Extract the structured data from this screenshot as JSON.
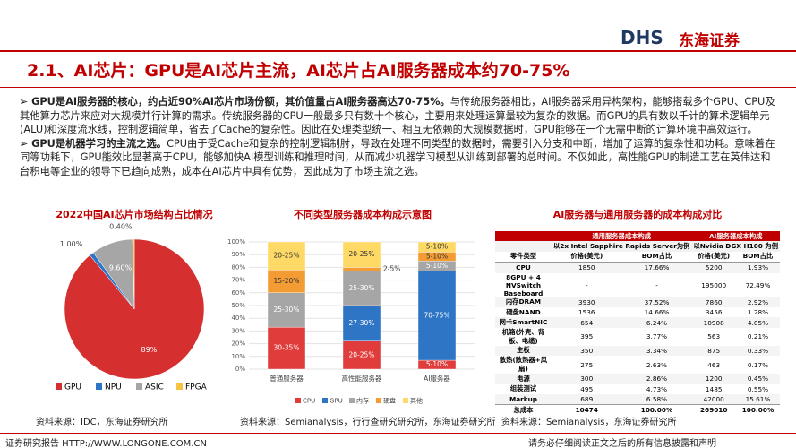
{
  "header": {
    "logo": "DHS",
    "logo_cn": "东海证券",
    "title": "2.1、AI芯片：GPU是AI芯片主流，AI芯片占AI服务器成本约70-75%"
  },
  "bullets": [
    {
      "bold": "GPU是AI服务器的核心，约占近90%AI芯片市场份额，其价值量占AI服务器高达70-75%。",
      "text": "与传统服务器相比，AI服务器采用异构架构，能够搭载多个GPU、CPU及其他算力芯片来应对大规模并行计算的需求。传统服务器的CPU一般最多只有数十个核心，主要用来处理运算量较为复杂的数据。而GPU的具有数以千计的算术逻辑单元(ALU)和深度流水线，控制逻辑简单，省去了Cache的复杂性。因此在处理类型统一、相互无依赖的大规模数据时，GPU能够在一个无需中断的计算环境中高效运行。"
    },
    {
      "bold": "GPU是机器学习的主流之选。",
      "text": "CPU由于受Cache和复杂的控制逻辑制肘，导致在处理不同类型的数据时，需要引入分支和中断，增加了运算的复杂性和功耗。意味着在同等功耗下，GPU能效比显著高于CPU，能够加快AI模型训练和推理时间，从而减少机器学习模型从训练到部署的总时间。不仅如此，高性能GPU的制造工艺在英伟达和台积电等企业的领导下已趋向成熟，成本在AI芯片中具有优势，因此成为了市场主流之选。"
    }
  ],
  "chart_data": [
    {
      "type": "pie",
      "title": "2022中国AI芯片市场结构占比情况",
      "categories": [
        "GPU",
        "NPU",
        "ASIC",
        "FPGA"
      ],
      "values": [
        89,
        1.0,
        9.6,
        0.4
      ],
      "value_labels": [
        "89%",
        "1.00%",
        "9.60%",
        "0.40%"
      ],
      "colors": [
        "#d62f2f",
        "#2e75c6",
        "#a6a6a6",
        "#f5c242"
      ]
    },
    {
      "type": "bar",
      "stacked": true,
      "title": "不同类型服务器成本构成示意图",
      "categories": [
        "普通服务器",
        "高性能服务器",
        "AI服务器"
      ],
      "series": [
        {
          "name": "CPU",
          "color": "#e03c3c",
          "values": [
            33,
            22,
            7
          ],
          "value_labels": [
            "30-35%",
            "20-25%",
            "5-10%"
          ]
        },
        {
          "name": "GPU",
          "color": "#2e75c6",
          "values": [
            null,
            28,
            70
          ],
          "value_labels": [
            null,
            "27-30%",
            "70-75%"
          ]
        },
        {
          "name": "内存",
          "color": "#a6a6a6",
          "values": [
            27,
            27,
            8
          ],
          "value_labels": [
            "25-30%",
            "25-30%",
            "5-10%"
          ]
        },
        {
          "name": "硬盘",
          "color": "#f39c34",
          "values": [
            18,
            3,
            7
          ],
          "value_labels": [
            "15-20%",
            "2-5%",
            "5-10%"
          ]
        },
        {
          "name": "其他",
          "color": "#ffd966",
          "values": [
            22,
            20,
            8
          ],
          "value_labels": [
            "20-25%",
            "20-25%",
            "5-10%"
          ]
        }
      ],
      "ylim": [
        0,
        100
      ],
      "yticks": [
        {
          "value": 0,
          "label": "0%"
        },
        {
          "value": 10,
          "label": "10%"
        },
        {
          "value": 20,
          "label": "20%"
        },
        {
          "value": 30,
          "label": "30%"
        },
        {
          "value": 40,
          "label": "40%"
        },
        {
          "value": 50,
          "label": "50%"
        },
        {
          "value": 60,
          "label": "60%"
        },
        {
          "value": 70,
          "label": "70%"
        },
        {
          "value": 80,
          "label": "80%"
        },
        {
          "value": 90,
          "label": "90%"
        },
        {
          "value": 100,
          "label": "100%"
        }
      ],
      "grid": true
    }
  ],
  "table": {
    "title": "AI服务器与通用服务器的成本构成对比",
    "groups": [
      "通用服务器成本构成",
      "AI服务器成本构成"
    ],
    "examples": [
      "以2x Intel Sapphire Rapids Server为例",
      "以Nvidia DGX H100 为例"
    ],
    "columns": [
      "零件类型",
      "价格(美元)",
      "BOM占比",
      "价格(美元)",
      "BOM占比"
    ],
    "rows": [
      [
        "CPU",
        "1850",
        "17.66%",
        "5200",
        "1.93%"
      ],
      [
        "8GPU + 4 NVSwitch Baseboard",
        "-",
        "-",
        "195000",
        "72.49%"
      ],
      [
        "内存DRAM",
        "3930",
        "37.52%",
        "7860",
        "2.92%"
      ],
      [
        "硬盘NAND",
        "1536",
        "14.66%",
        "3456",
        "1.28%"
      ],
      [
        "网卡SmartNIC",
        "654",
        "6.24%",
        "10908",
        "4.05%"
      ],
      [
        "机箱(外壳、背板、电缆)",
        "395",
        "3.77%",
        "563",
        "0.21%"
      ],
      [
        "主板",
        "350",
        "3.34%",
        "875",
        "0.33%"
      ],
      [
        "散热(散热器+风扇)",
        "275",
        "2.63%",
        "463",
        "0.17%"
      ],
      [
        "电源",
        "300",
        "2.86%",
        "1200",
        "0.45%"
      ],
      [
        "组装测试",
        "495",
        "4.73%",
        "1485",
        "0.55%"
      ],
      [
        "Markup",
        "689",
        "6.58%",
        "42000",
        "15.61%"
      ],
      [
        "总成本",
        "10474",
        "100.00%",
        "269010",
        "100.00%"
      ]
    ]
  },
  "sources": [
    "资料来源：IDC，东海证券研究所",
    "资料来源：Semianalysis，行行查研究研究所，东海证券研究所",
    "资料来源：Semianalysis，东海证券研究所"
  ],
  "footer": {
    "left": "证券研究报告 HTTP://WWW.LONGONE.COM.CN",
    "right": "请务必仔细阅读正文之后的所有信息披露和声明"
  }
}
